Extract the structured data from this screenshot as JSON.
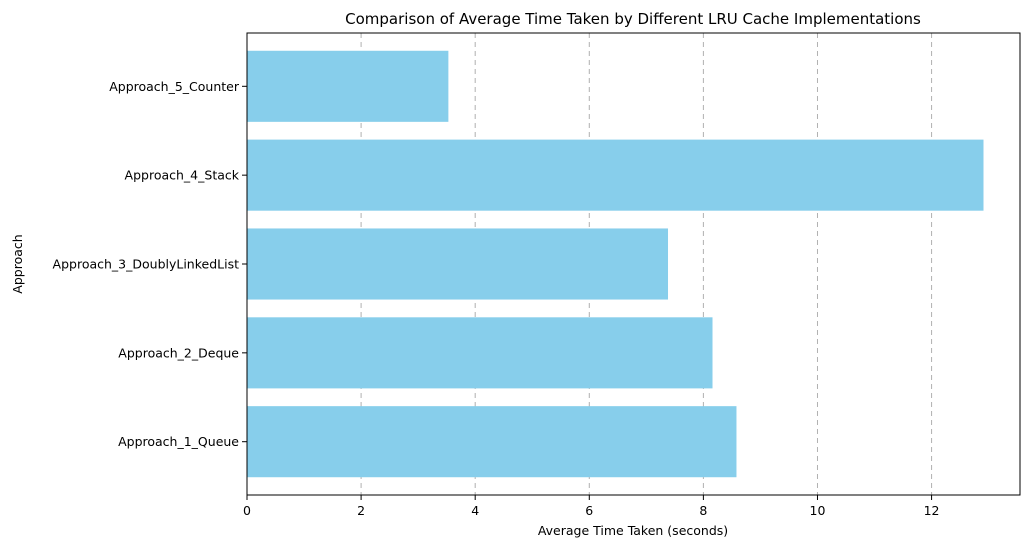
{
  "chart_data": {
    "type": "bar",
    "orientation": "horizontal",
    "title": "Comparison of Average Time Taken by Different LRU Cache Implementations",
    "xlabel": "Average Time Taken (seconds)",
    "ylabel": "Approach",
    "categories": [
      "Approach_1_Queue",
      "Approach_2_Deque",
      "Approach_3_DoublyLinkedList",
      "Approach_4_Stack",
      "Approach_5_Counter"
    ],
    "values": [
      8.58,
      8.16,
      7.38,
      12.91,
      3.53
    ],
    "xlim": [
      0,
      13.55
    ],
    "xticks": [
      0,
      2,
      4,
      6,
      8,
      10,
      12
    ],
    "xtick_labels": [
      "0",
      "2",
      "4",
      "6",
      "8",
      "10",
      "12"
    ],
    "grid": "x-dashed",
    "bar_color": "#87CEEB"
  }
}
